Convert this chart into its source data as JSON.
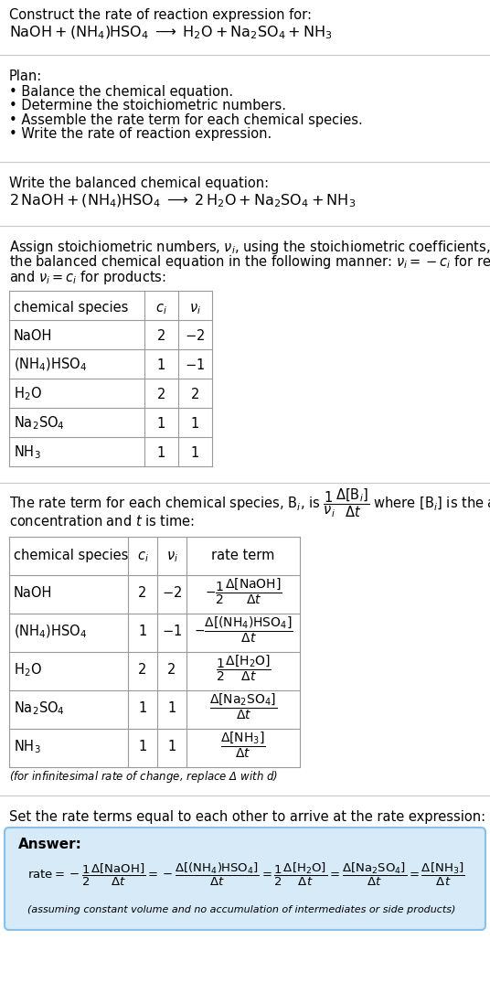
{
  "bg_color": "#ffffff",
  "text_color": "#000000",
  "separator_color": "#c8c8c8",
  "table_border_color": "#999999",
  "answer_box_facecolor": "#d6eaf8",
  "answer_box_edgecolor": "#85c1e9",
  "title_line1": "Construct the rate of reaction expression for:",
  "title_line2": "$\\mathrm{NaOH + (NH_4)HSO_4 \\;\\longrightarrow\\; H_2O + Na_2SO_4 + NH_3}$",
  "plan_header": "Plan:",
  "plan_items": [
    "• Balance the chemical equation.",
    "• Determine the stoichiometric numbers.",
    "• Assemble the rate term for each chemical species.",
    "• Write the rate of reaction expression."
  ],
  "balanced_header": "Write the balanced chemical equation:",
  "balanced_eq": "$\\mathrm{2\\,NaOH + (NH_4)HSO_4 \\;\\longrightarrow\\; 2\\,H_2O + Na_2SO_4 + NH_3}$",
  "stoich_intro_lines": [
    "Assign stoichiometric numbers, $\\nu_i$, using the stoichiometric coefficients, $c_i$, from",
    "the balanced chemical equation in the following manner: $\\nu_i = -c_i$ for reactants",
    "and $\\nu_i = c_i$ for products:"
  ],
  "table1_headers": [
    "chemical species",
    "$c_i$",
    "$\\nu_i$"
  ],
  "table1_rows": [
    [
      "NaOH",
      "2",
      "$-2$"
    ],
    [
      "$(\\mathrm{NH_4})\\mathrm{HSO_4}$",
      "1",
      "$-1$"
    ],
    [
      "$\\mathrm{H_2O}$",
      "2",
      "2"
    ],
    [
      "$\\mathrm{Na_2SO_4}$",
      "1",
      "1"
    ],
    [
      "$\\mathrm{NH_3}$",
      "1",
      "1"
    ]
  ],
  "rate_intro_lines": [
    "The rate term for each chemical species, $\\mathrm{B}_i$, is $\\dfrac{1}{\\nu_i}\\dfrac{\\Delta[\\mathrm{B}_i]}{\\Delta t}$ where $[\\mathrm{B}_i]$ is the amount",
    "concentration and $t$ is time:"
  ],
  "table2_headers": [
    "chemical species",
    "$c_i$",
    "$\\nu_i$",
    "rate term"
  ],
  "table2_rows": [
    [
      "NaOH",
      "2",
      "$-2$",
      "$-\\dfrac{1}{2}\\dfrac{\\Delta[\\mathrm{NaOH}]}{\\Delta t}$"
    ],
    [
      "$(\\mathrm{NH_4})\\mathrm{HSO_4}$",
      "1",
      "$-1$",
      "$-\\dfrac{\\Delta[\\mathrm{(NH_4)HSO_4}]}{\\Delta t}$"
    ],
    [
      "$\\mathrm{H_2O}$",
      "2",
      "2",
      "$\\dfrac{1}{2}\\dfrac{\\Delta[\\mathrm{H_2O}]}{\\Delta t}$"
    ],
    [
      "$\\mathrm{Na_2SO_4}$",
      "1",
      "1",
      "$\\dfrac{\\Delta[\\mathrm{Na_2SO_4}]}{\\Delta t}$"
    ],
    [
      "$\\mathrm{NH_3}$",
      "1",
      "1",
      "$\\dfrac{\\Delta[\\mathrm{NH_3}]}{\\Delta t}$"
    ]
  ],
  "footnote_infinitesimal": "(for infinitesimal rate of change, replace Δ with $d$)",
  "rate_eq_intro": "Set the rate terms equal to each other to arrive at the rate expression:",
  "answer_label": "Answer:",
  "rate_expression": "$\\mathrm{rate} = -\\dfrac{1}{2}\\dfrac{\\Delta[\\mathrm{NaOH}]}{\\Delta t} = -\\dfrac{\\Delta[\\mathrm{(NH_4)HSO_4}]}{\\Delta t} = \\dfrac{1}{2}\\dfrac{\\Delta[\\mathrm{H_2O}]}{\\Delta t} = \\dfrac{\\Delta[\\mathrm{Na_2SO_4}]}{\\Delta t} = \\dfrac{\\Delta[\\mathrm{NH_3}]}{\\Delta t}$",
  "assuming_note": "(assuming constant volume and no accumulation of intermediates or side products)"
}
